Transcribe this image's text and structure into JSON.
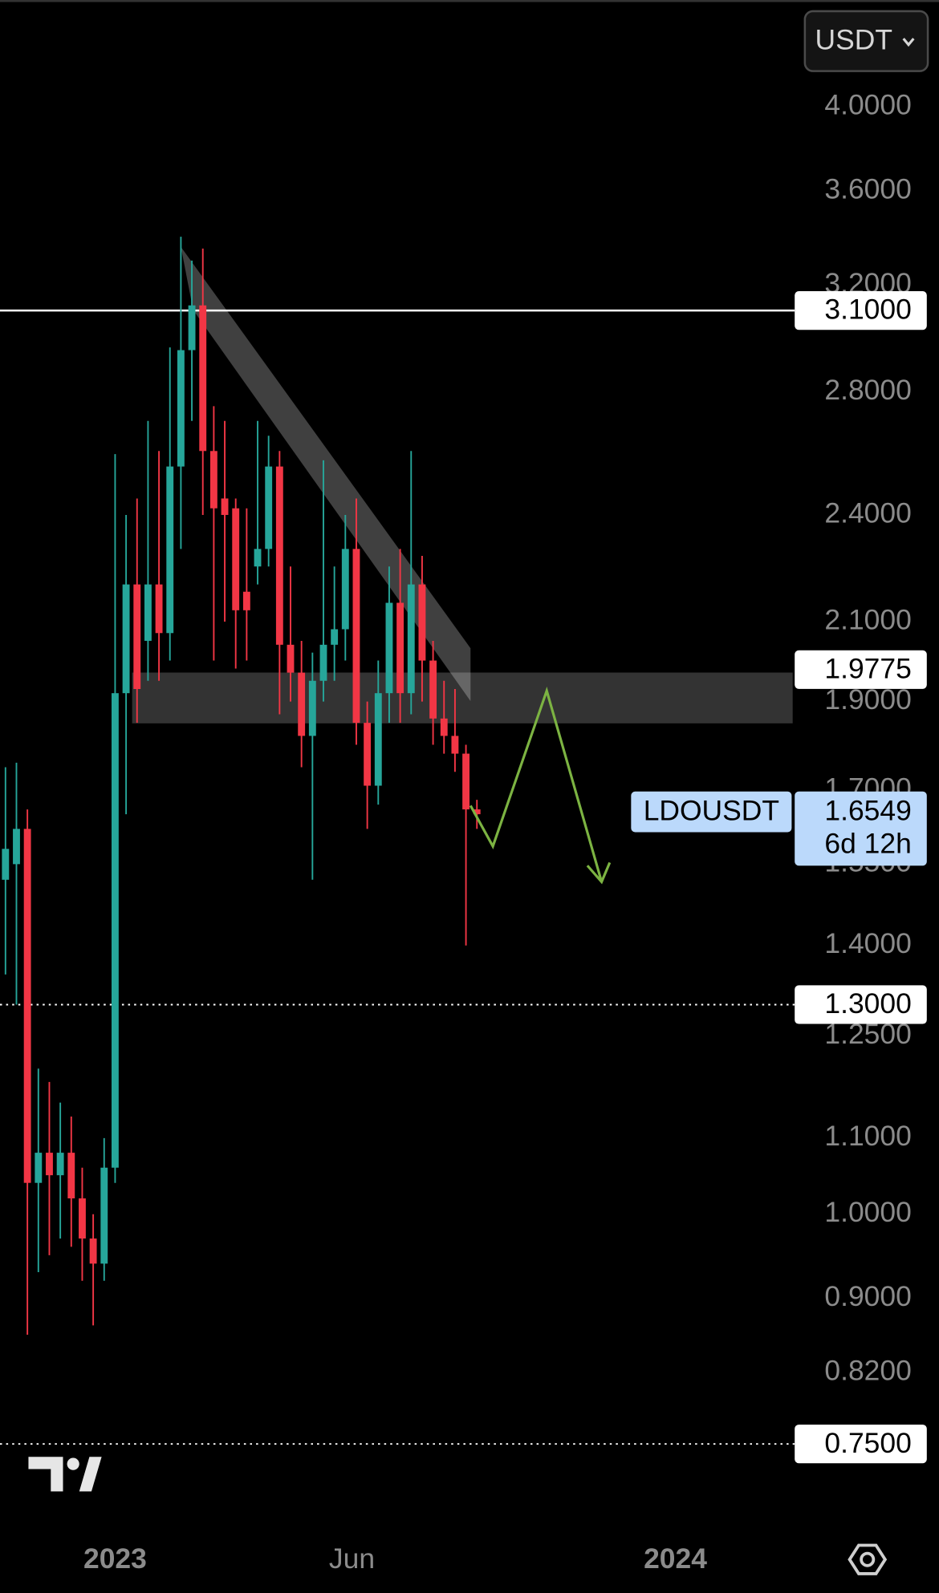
{
  "chart_data": {
    "type": "candlestick",
    "symbol": "LDOUSDT",
    "currency": "USDT",
    "up_color": "#26a69a",
    "down_color": "#f23645",
    "log_scale": true,
    "grid": false,
    "xlim": [
      -0.5,
      71.8
    ],
    "ylim": [
      0.67,
      4.573
    ],
    "xticks": [
      {
        "value": 10,
        "label": "2023"
      },
      {
        "value": 31.6,
        "label": "Jun"
      },
      {
        "value": 61.1,
        "label": "2024"
      }
    ],
    "yticks": [
      {
        "value": 4,
        "label": "4.0000"
      },
      {
        "value": 3.6,
        "label": "3.6000"
      },
      {
        "value": 3.2,
        "label": "3.2000"
      },
      {
        "value": 2.8,
        "label": "2.8000"
      },
      {
        "value": 2.4,
        "label": "2.4000"
      },
      {
        "value": 2.1,
        "label": "2.1000"
      },
      {
        "value": 1.9,
        "label": "1.9000"
      },
      {
        "value": 1.7,
        "label": "1.7000"
      },
      {
        "value": 1.55,
        "label": "1.5500"
      },
      {
        "value": 1.4,
        "label": "1.4000"
      },
      {
        "value": 1.25,
        "label": "1.2500"
      },
      {
        "value": 1.1,
        "label": "1.1000"
      },
      {
        "value": 1,
        "label": "1.0000"
      },
      {
        "value": 0.9,
        "label": "0.9000"
      },
      {
        "value": 0.82,
        "label": "0.8200"
      }
    ],
    "open": [
      1.52,
      1.55,
      1.62,
      1.04,
      1.08,
      1.05,
      1.08,
      1.02,
      0.97,
      0.94,
      1.06,
      1.92,
      2.2,
      2.05,
      2.2,
      2.07,
      2.55,
      2.95,
      3.12,
      2.6,
      2.45,
      2.42,
      2.18,
      2.25,
      2.3,
      2.55,
      2.04,
      1.97,
      1.82,
      1.95,
      2.04,
      2.08,
      2.3,
      1.85,
      1.71,
      1.92,
      2.15,
      1.92,
      2.2,
      2.0,
      1.86,
      1.82,
      1.78,
      1.66
    ],
    "high": [
      1.75,
      1.76,
      1.66,
      1.2,
      1.18,
      1.15,
      1.13,
      1.06,
      1.0,
      1.1,
      2.59,
      2.4,
      2.45,
      2.7,
      2.6,
      2.96,
      3.4,
      3.3,
      3.35,
      2.75,
      2.7,
      2.45,
      2.42,
      2.7,
      2.65,
      2.6,
      2.25,
      2.05,
      2.02,
      2.57,
      2.25,
      2.4,
      2.45,
      1.9,
      2.0,
      2.25,
      2.3,
      2.6,
      2.28,
      2.05,
      1.95,
      1.93,
      1.8,
      1.68
    ],
    "low": [
      1.35,
      1.3,
      0.86,
      0.93,
      0.95,
      0.97,
      0.96,
      0.92,
      0.87,
      0.92,
      1.04,
      1.65,
      1.85,
      1.95,
      1.95,
      2.0,
      2.3,
      2.7,
      2.4,
      2.0,
      2.1,
      1.98,
      2.0,
      2.2,
      2.25,
      1.87,
      1.9,
      1.75,
      1.52,
      1.9,
      1.95,
      2.0,
      1.8,
      1.62,
      1.67,
      1.85,
      1.85,
      1.87,
      1.9,
      1.8,
      1.78,
      1.74,
      1.4,
      1.62
    ],
    "close": [
      1.58,
      1.62,
      1.04,
      1.08,
      1.05,
      1.08,
      1.02,
      0.97,
      0.94,
      1.06,
      1.92,
      2.2,
      1.93,
      2.2,
      2.07,
      2.55,
      2.95,
      3.12,
      2.6,
      2.42,
      2.4,
      2.13,
      2.13,
      2.3,
      2.55,
      2.04,
      1.97,
      1.82,
      1.95,
      2.04,
      2.08,
      2.3,
      1.85,
      1.71,
      1.92,
      2.15,
      1.92,
      2.2,
      2.0,
      1.86,
      1.82,
      1.78,
      1.66,
      1.65
    ],
    "price_lines": [
      {
        "value": 3.1,
        "label": "3.1000",
        "style": "solid"
      },
      {
        "value": 1.9775,
        "label": "1.9775",
        "style": "none"
      },
      {
        "value": 1.3,
        "label": "1.3000",
        "style": "dotted"
      },
      {
        "value": 0.75,
        "label": "0.7500",
        "style": "dotted"
      }
    ],
    "last_price": {
      "value": 1.6549,
      "label": "1.6549",
      "countdown": "6d 12h"
    }
  }
}
